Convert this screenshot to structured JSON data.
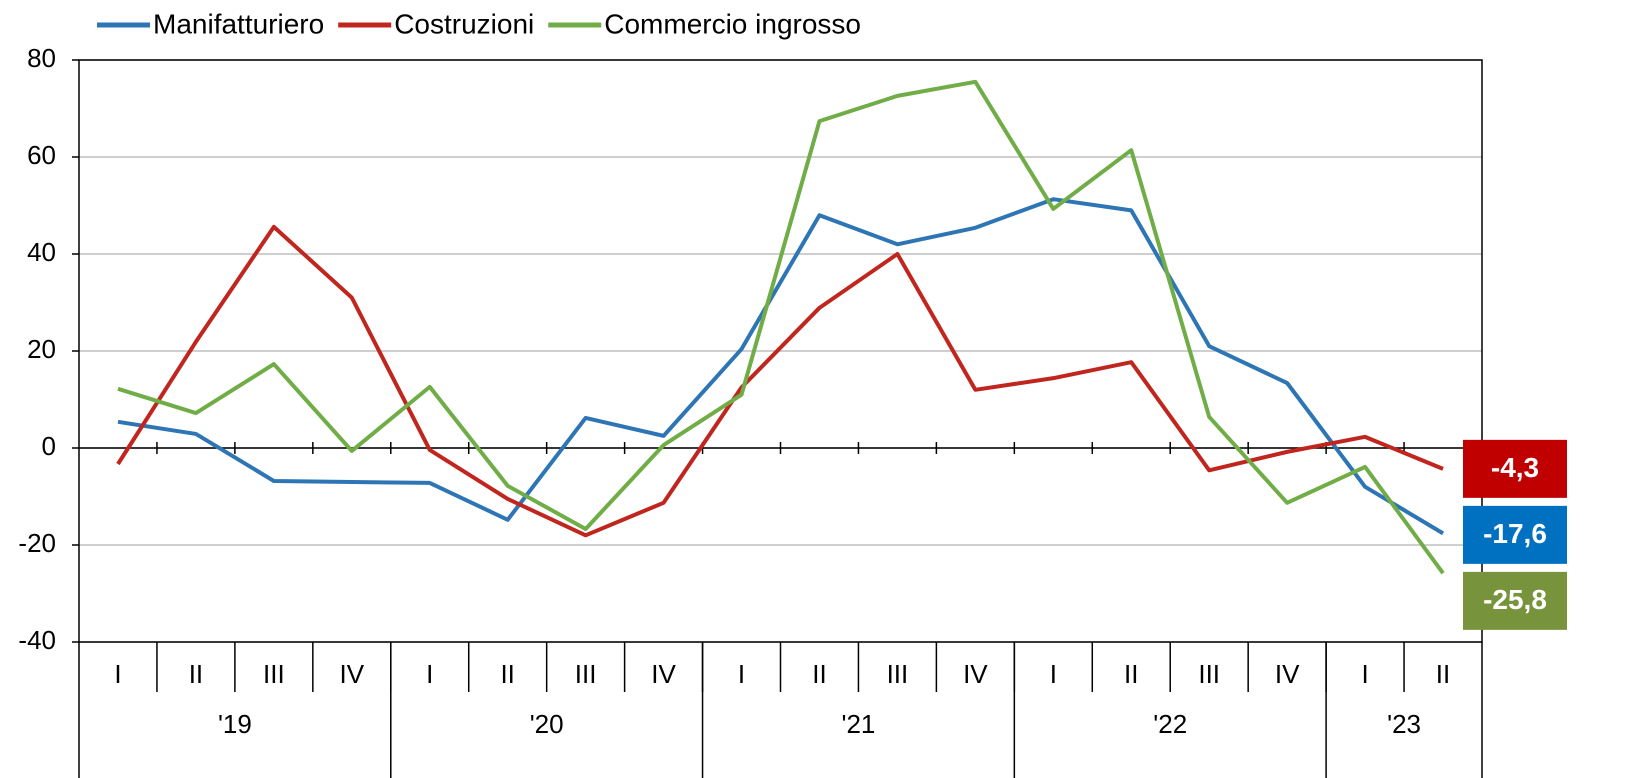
{
  "chart_data": {
    "type": "line",
    "categories": [
      "I",
      "II",
      "III",
      "IV",
      "I",
      "II",
      "III",
      "IV",
      "I",
      "II",
      "III",
      "IV",
      "I",
      "II",
      "III",
      "IV",
      "I",
      "II"
    ],
    "x_groups": [
      {
        "label": "'19",
        "count": 4
      },
      {
        "label": "'20",
        "count": 4
      },
      {
        "label": "'21",
        "count": 4
      },
      {
        "label": "'22",
        "count": 4
      },
      {
        "label": "'23",
        "count": 2
      }
    ],
    "series": [
      {
        "name": "Manifatturiero",
        "color": "#2e75b6",
        "label_color": "#0070c0",
        "values": [
          5.4,
          2.9,
          -6.8,
          -7.0,
          -7.2,
          -14.8,
          6.2,
          2.5,
          20.4,
          48.0,
          42.0,
          45.4,
          51.3,
          49.0,
          21.0,
          13.4,
          -8.0,
          -17.6
        ],
        "value_labels": [
          null,
          null,
          null,
          null,
          null,
          null,
          null,
          null,
          null,
          null,
          null,
          null,
          null,
          null,
          null,
          null,
          null,
          "-17,6"
        ]
      },
      {
        "name": "Costruzioni",
        "color": "#c0261e",
        "label_color": "#c00000",
        "values": [
          -3.3,
          21.9,
          45.6,
          31.0,
          -0.4,
          -10.5,
          -18.0,
          -11.3,
          12.5,
          28.9,
          40.0,
          12.0,
          14.4,
          17.7,
          -4.6,
          -0.8,
          2.3,
          -4.3
        ],
        "value_labels": [
          null,
          null,
          null,
          null,
          null,
          null,
          null,
          null,
          null,
          null,
          null,
          null,
          null,
          null,
          null,
          null,
          null,
          "-4,3"
        ]
      },
      {
        "name": "Commercio ingrosso",
        "color": "#70ad47",
        "label_color": "#77933c",
        "values": [
          12.2,
          7.2,
          17.3,
          -0.6,
          12.6,
          -7.8,
          -16.7,
          0.6,
          11.0,
          67.4,
          72.6,
          75.5,
          49.3,
          61.4,
          6.4,
          -11.3,
          -3.9,
          -25.8
        ],
        "value_labels": [
          null,
          null,
          null,
          null,
          null,
          null,
          null,
          null,
          null,
          null,
          null,
          null,
          null,
          null,
          null,
          null,
          null,
          "-25,8"
        ]
      }
    ],
    "ylim": [
      -40,
      80
    ],
    "yticks": [
      -40,
      -20,
      0,
      20,
      40,
      60,
      80
    ],
    "grid": true,
    "legend": "top"
  }
}
